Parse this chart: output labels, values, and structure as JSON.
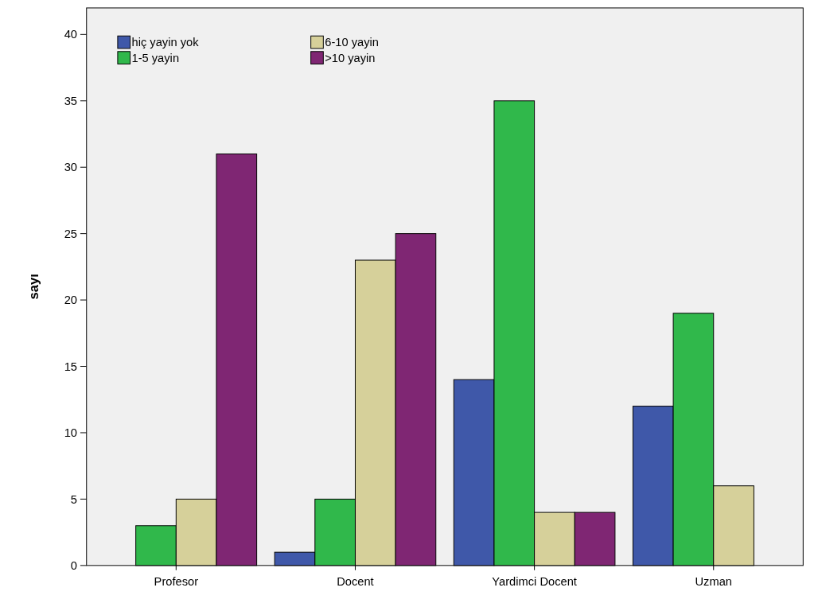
{
  "chart_data": {
    "type": "bar",
    "ylabel": "sayı",
    "categories": [
      "Profesor",
      "Docent",
      "Yardimci Docent",
      "Uzman"
    ],
    "series": [
      {
        "name": "hiç yayin yok",
        "color": "#3f58a9",
        "values": [
          0,
          1,
          14,
          12
        ]
      },
      {
        "name": "1-5 yayin",
        "color": "#30b84b",
        "values": [
          3,
          5,
          35,
          19
        ]
      },
      {
        "name": "6-10 yayin",
        "color": "#d6d09a",
        "values": [
          5,
          23,
          4,
          6
        ]
      },
      {
        "name": ">10 yayin",
        "color": "#7f2673",
        "values": [
          31,
          25,
          4,
          0
        ]
      }
    ],
    "ylim": [
      0,
      42
    ],
    "yticks": [
      0,
      5,
      10,
      15,
      20,
      25,
      30,
      35,
      40
    ],
    "grid": false,
    "legend": "top left"
  }
}
